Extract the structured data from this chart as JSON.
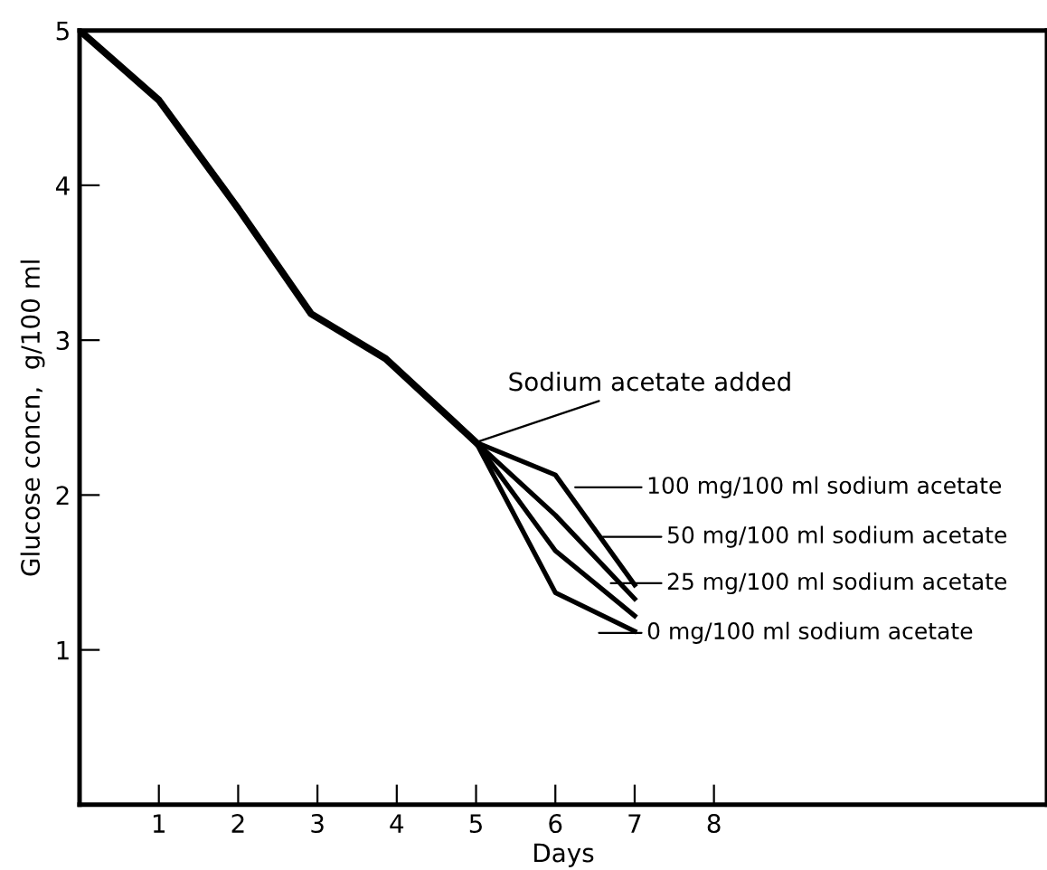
{
  "chart_data": {
    "type": "line",
    "xlabel": "Days",
    "ylabel": "Glucose concn,  g/100 ml",
    "xlim": [
      0,
      12.2
    ],
    "ylim": [
      0,
      5
    ],
    "xticks": [
      1,
      2,
      3,
      4,
      5,
      6,
      7,
      8
    ],
    "yticks": [
      1,
      2,
      3,
      4,
      5
    ],
    "grid": false,
    "legend": "right",
    "marker": "none",
    "line_style": "solid",
    "series": [
      {
        "color": "#000000",
        "x": [
          0,
          1,
          2,
          2.92,
          3.86,
          5
        ],
        "values": [
          5,
          4.55,
          3.85,
          3.17,
          2.88,
          2.34
        ]
      },
      {
        "name": "100 mg/100 ml sodium acetate",
        "color": "#000000",
        "x": [
          5,
          6,
          7
        ],
        "values": [
          2.34,
          2.13,
          1.42
        ]
      },
      {
        "name": "50 mg/100 ml sodium acetate",
        "color": "#000000",
        "x": [
          5,
          6,
          7
        ],
        "values": [
          2.34,
          1.87,
          1.33
        ]
      },
      {
        "name": "25 mg/100 ml sodium acetate",
        "color": "#000000",
        "x": [
          5,
          6,
          7
        ],
        "values": [
          2.34,
          1.64,
          1.22
        ]
      },
      {
        "name": "0 mg/100 ml sodium acetate",
        "color": "#000000",
        "x": [
          5,
          6,
          7
        ],
        "values": [
          2.34,
          1.37,
          1.12
        ]
      }
    ],
    "annotations": [
      {
        "text": "Sodium acetate added",
        "x": 5,
        "y": 2.34
      }
    ]
  }
}
